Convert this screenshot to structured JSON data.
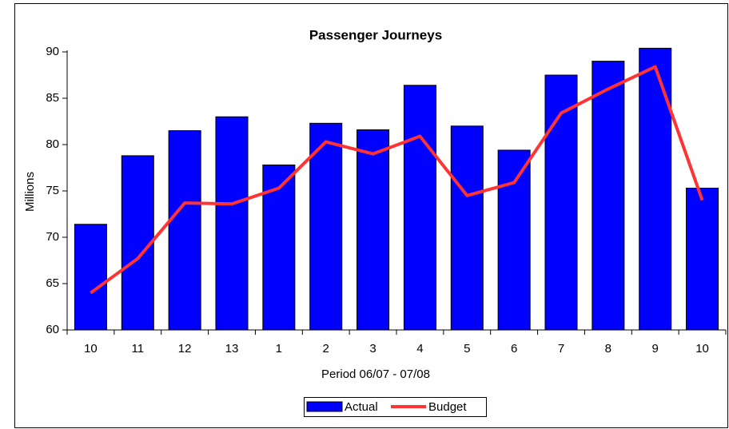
{
  "chart_data": {
    "type": "bar",
    "title": "Passenger Journeys",
    "x_label": "Period 06/07 - 07/08",
    "y_label": "Millions",
    "categories": [
      "10",
      "11",
      "12",
      "13",
      "1",
      "2",
      "3",
      "4",
      "5",
      "6",
      "7",
      "8",
      "9",
      "10"
    ],
    "series": [
      {
        "name": "Actual",
        "type": "bar",
        "color": "#0000ff",
        "values": [
          71.4,
          78.8,
          81.5,
          83.0,
          77.8,
          82.3,
          81.6,
          86.4,
          82.0,
          79.4,
          87.5,
          89.0,
          90.4,
          75.3
        ]
      },
      {
        "name": "Budget",
        "type": "line",
        "color": "#ff3333",
        "values": [
          64.0,
          67.7,
          73.7,
          73.6,
          75.3,
          80.3,
          79.0,
          80.9,
          74.5,
          75.9,
          83.4,
          86.0,
          88.4,
          74.0
        ]
      }
    ],
    "ylim": [
      60,
      90
    ],
    "yticks": [
      60,
      65,
      70,
      75,
      80,
      85,
      90
    ],
    "legend": "bottom"
  }
}
